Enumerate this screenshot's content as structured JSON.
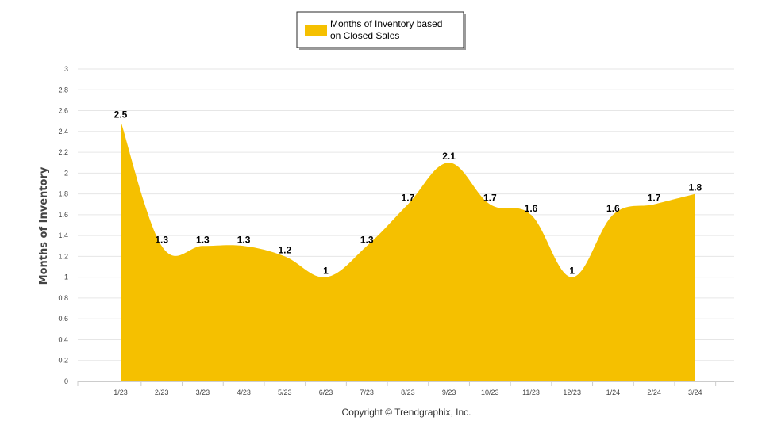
{
  "chart_data": {
    "type": "area",
    "title": "",
    "categories": [
      "1/23",
      "2/23",
      "3/23",
      "4/23",
      "5/23",
      "6/23",
      "7/23",
      "8/23",
      "9/23",
      "10/23",
      "11/23",
      "12/23",
      "1/24",
      "2/24",
      "3/24"
    ],
    "series": [
      {
        "name": "Months of Inventory based on Closed Sales",
        "color": "#f5c000",
        "values": [
          2.5,
          1.3,
          1.3,
          1.3,
          1.2,
          1,
          1.3,
          1.7,
          2.1,
          1.7,
          1.6,
          1,
          1.6,
          1.7,
          1.8
        ],
        "value_labels": [
          "2.5",
          "1.3",
          "1.3",
          "1.3",
          "1.2",
          "1",
          "1.3",
          "1.7",
          "2.1",
          "1.7",
          "1.6",
          "1",
          "1.6",
          "1.7",
          "1.8"
        ]
      }
    ],
    "ylabel": "Months of Inventory",
    "xlabel": "",
    "ylim": [
      0,
      3
    ],
    "yticks": [
      "0",
      "0.2",
      "0.4",
      "0.6",
      "0.8",
      "1",
      "1.2",
      "1.4",
      "1.6",
      "1.8",
      "2",
      "2.2",
      "2.4",
      "2.6",
      "2.8",
      "3"
    ],
    "grid": true,
    "legend_position": "top-center"
  },
  "legend": {
    "line1": "Months of Inventory based",
    "line2": "on Closed Sales"
  },
  "footer": {
    "copyright": "Copyright © Trendgraphix, Inc."
  },
  "colors": {
    "area": "#f5c000",
    "grid": "#e6e6e6",
    "axis": "#cccccc"
  }
}
